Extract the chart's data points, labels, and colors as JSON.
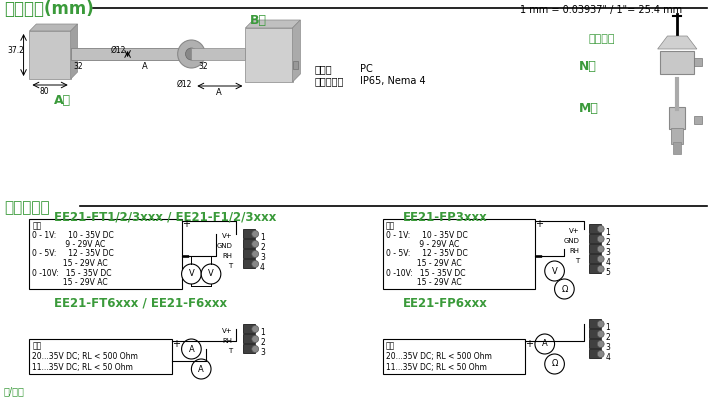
{
  "title_top": "结构尺寸(mm)",
  "title_circuit": "电路连接图",
  "bg_color": "#ffffff",
  "green_color": "#3a9a3a",
  "dark_green": "#2d7a2d",
  "text_color": "#000000",
  "gray_color": "#888888",
  "light_gray": "#cccccc",
  "conversion_note": "1 mm = 0.03937\" / 1\"= 25.4 mm",
  "b_type_label": "B型",
  "a_type_label": "A型",
  "n_type_label": "N型",
  "m_type_label": "M型",
  "mount_label": "安装卡子",
  "housing_label": "外壳：",
  "housing_value": "PC",
  "protection_label": "防护等级：",
  "protection_value": "IP65, Nema 4",
  "circuit1_title": "EE21-FT1/2/3xxx / EE21-F1/2/3xxx",
  "circuit2_title": "EE21-FT6xxx / EE21-F6xxx",
  "circuit3_title": "EE21-FP3xxx",
  "circuit4_title": "EE21-FP6xxx",
  "supply1_text": "供电\n0 - 1V:    10 - 35V DC\n             9 - 29V AC\n0 - 5V:    12 - 35V DC\n            15 - 29V AC\n0 -10V:  15 - 35V DC\n            15 - 29V AC",
  "supply2_text": "供电\n20...35V DC; RL < 500 Ohm\n11...35V DC; RL < 50 Ohm",
  "supply3_text": "供电\n0 - 1V:    10 - 35V DC\n             9 - 29V AC\n0 - 5V:    12 - 35V DC\n            15 - 29V AC\n0 -10V:  15 - 35V DC\n            15 - 29V AC",
  "supply4_text": "供电\n20...35V DC; RL < 500 Ohm\n11...35V DC; RL < 50 Ohm"
}
